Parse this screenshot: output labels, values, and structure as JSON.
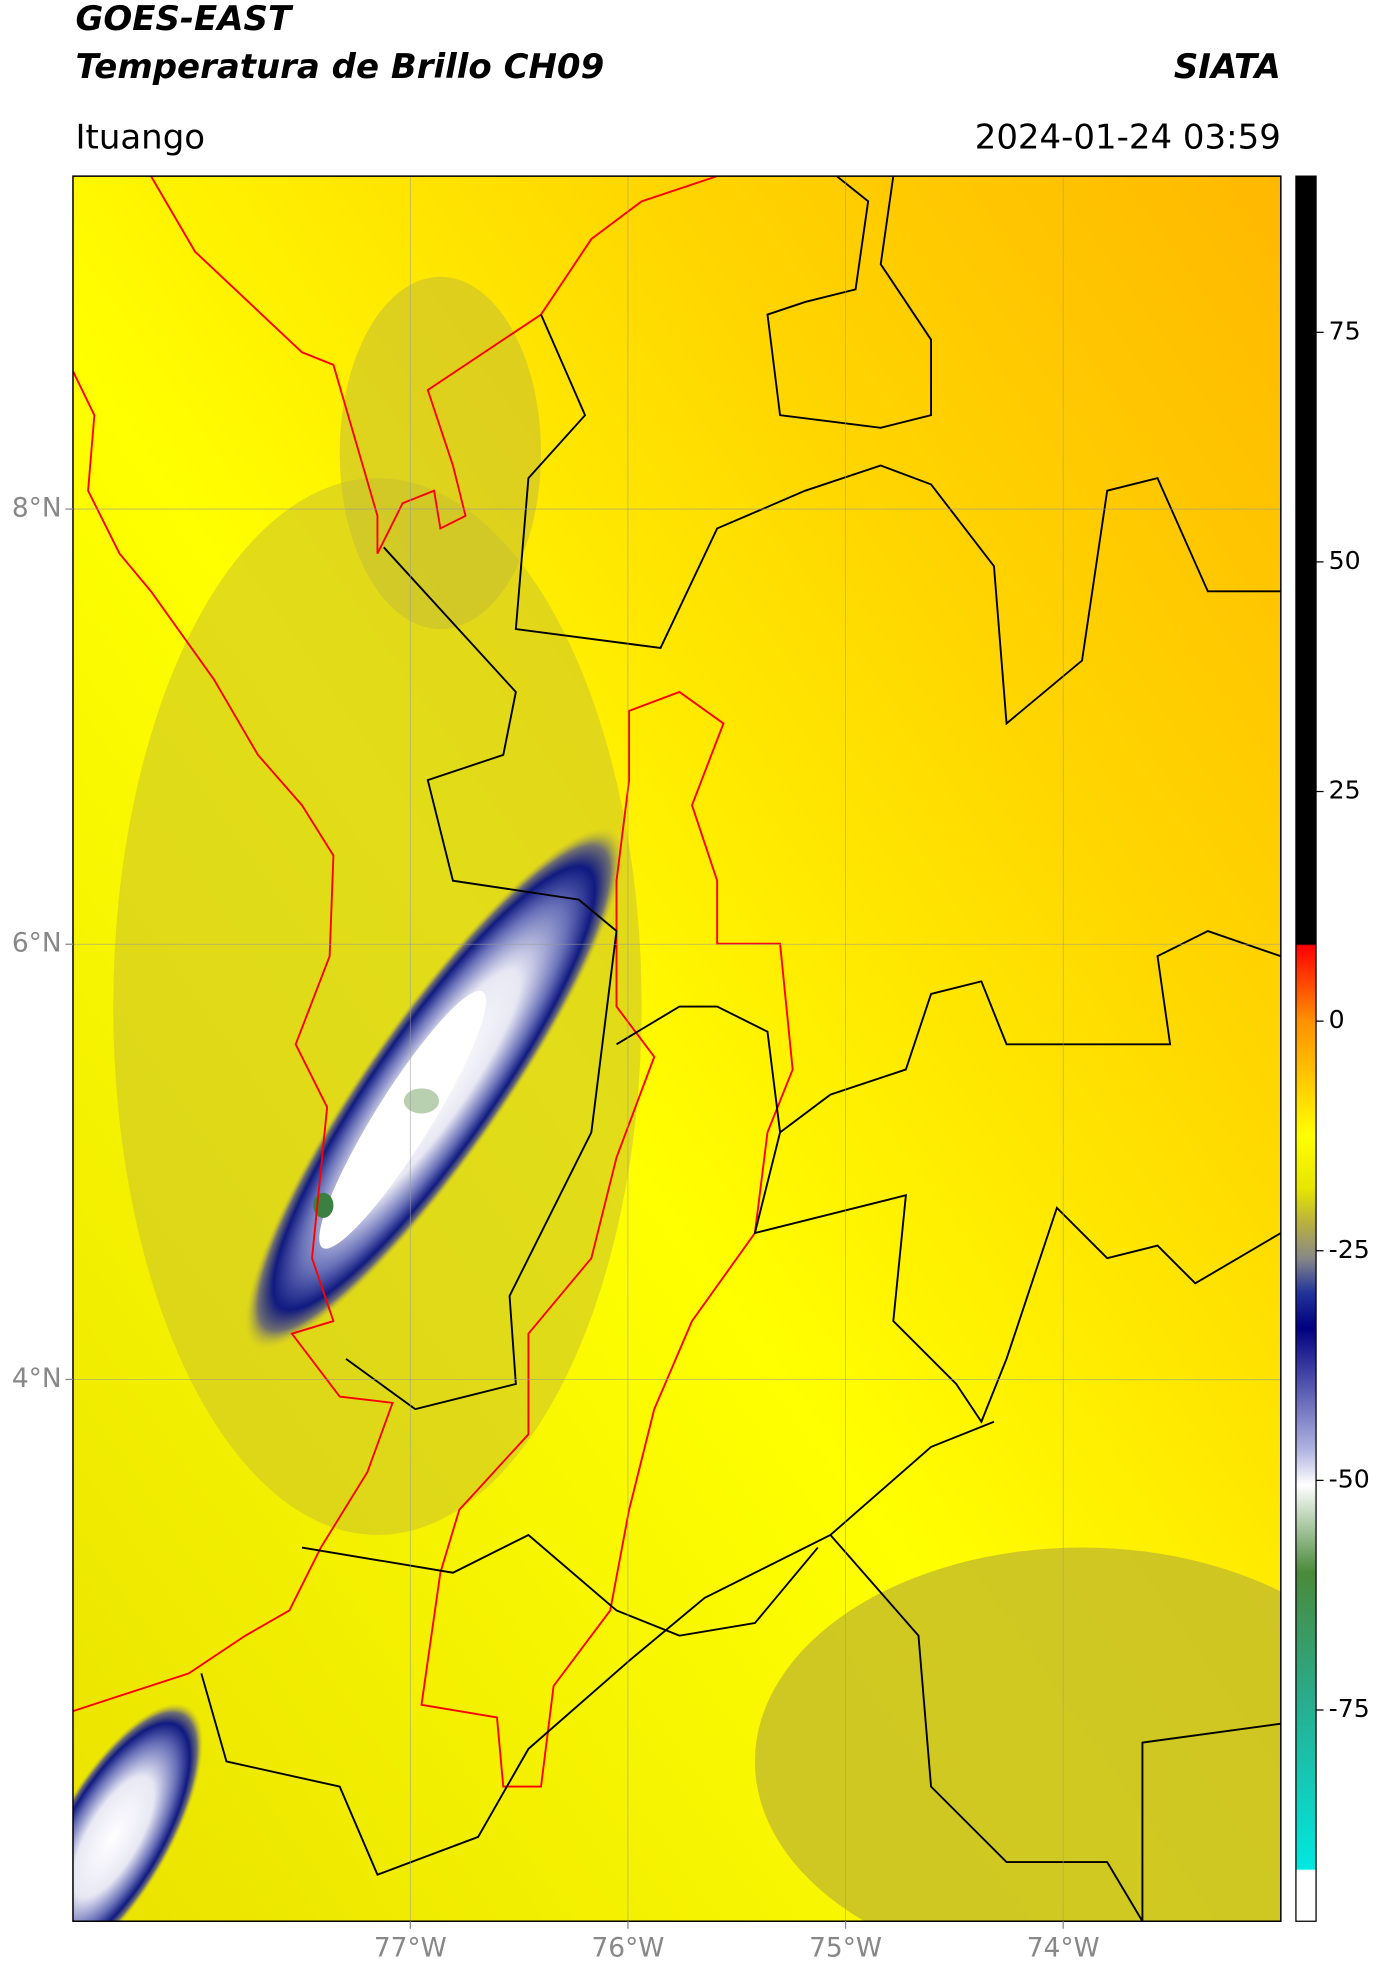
{
  "header": {
    "title": "GOES-EAST",
    "subtitle": "Temperatura de Brillo CH09",
    "source": "SIATA",
    "location": "Ituango",
    "timestamp": "2024-01-24 03:59"
  },
  "map": {
    "xlim": [
      -78.55,
      -73.0
    ],
    "ylim": [
      1.51,
      9.53
    ],
    "xticks": [
      {
        "value": -77,
        "label": "77°W"
      },
      {
        "value": -76,
        "label": "76°W"
      },
      {
        "value": -75,
        "label": "75°W"
      },
      {
        "value": -74,
        "label": "74°W"
      }
    ],
    "yticks": [
      {
        "value": 4,
        "label": "4°N"
      },
      {
        "value": 6,
        "label": "6°N"
      },
      {
        "value": 8,
        "label": "8°N"
      }
    ],
    "grid": true
  },
  "colorbar": {
    "lim": [
      -98,
      92
    ],
    "ticks": [
      -75,
      -50,
      -25,
      0,
      25,
      50,
      75
    ]
  }
}
